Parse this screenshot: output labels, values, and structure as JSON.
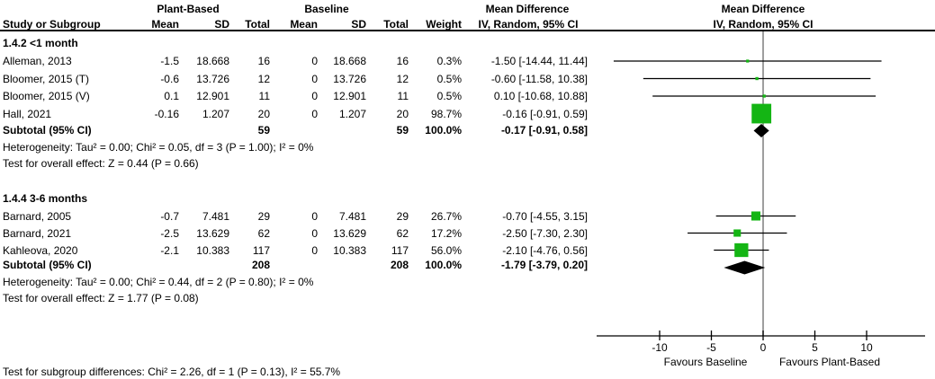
{
  "colors": {
    "marker_green": "#14b514",
    "diamond_black": "#000000",
    "ci_line": "#000000",
    "zero_line_gray": "#7f7f7f",
    "axis_black": "#000000",
    "text": "#000000"
  },
  "headers": {
    "group_plant": "Plant-Based",
    "group_baseline": "Baseline",
    "study": "Study or Subgroup",
    "mean1": "Mean",
    "sd1": "SD",
    "total1": "Total",
    "mean2": "Mean",
    "sd2": "SD",
    "total2": "Total",
    "weight": "Weight",
    "md_line1": "Mean Difference",
    "md_line2": "IV, Random, 95% CI",
    "plot_line1": "Mean Difference",
    "plot_line2": "IV, Random, 95% CI"
  },
  "chart_data": {
    "type": "forest",
    "effect_measure": "Mean Difference",
    "model": "IV, Random, 95% CI",
    "axis": {
      "ticks": [
        -10,
        -5,
        0,
        5,
        10
      ],
      "tick_labels": [
        "-10",
        "-5",
        "0",
        "5",
        "10"
      ],
      "favours_left": "Favours Baseline",
      "favours_right": "Favours Plant-Based"
    },
    "subgroups": [
      {
        "label": "1.4.2 <1 month",
        "studies": [
          {
            "study": "Alleman, 2013",
            "mean1": "-1.5",
            "sd1": "18.668",
            "n1": "16",
            "mean2": "0",
            "sd2": "18.668",
            "n2": "16",
            "weight": "0.3%",
            "weight_pct": 0.3,
            "md": -1.5,
            "ci_lo": -14.44,
            "ci_hi": 11.44,
            "ci_text": "-1.50 [-14.44, 11.44]"
          },
          {
            "study": "Bloomer, 2015 (T)",
            "mean1": "-0.6",
            "sd1": "13.726",
            "n1": "12",
            "mean2": "0",
            "sd2": "13.726",
            "n2": "12",
            "weight": "0.5%",
            "weight_pct": 0.5,
            "md": -0.6,
            "ci_lo": -11.58,
            "ci_hi": 10.38,
            "ci_text": "-0.60 [-11.58, 10.38]"
          },
          {
            "study": "Bloomer, 2015 (V)",
            "mean1": "0.1",
            "sd1": "12.901",
            "n1": "11",
            "mean2": "0",
            "sd2": "12.901",
            "n2": "11",
            "weight": "0.5%",
            "weight_pct": 0.5,
            "md": 0.1,
            "ci_lo": -10.68,
            "ci_hi": 10.88,
            "ci_text": "0.10 [-10.68, 10.88]"
          },
          {
            "study": "Hall, 2021",
            "mean1": "-0.16",
            "sd1": "1.207",
            "n1": "20",
            "mean2": "0",
            "sd2": "1.207",
            "n2": "20",
            "weight": "98.7%",
            "weight_pct": 98.7,
            "md": -0.16,
            "ci_lo": -0.91,
            "ci_hi": 0.59,
            "ci_text": "-0.16 [-0.91, 0.59]"
          }
        ],
        "subtotal": {
          "label": "Subtotal (95% CI)",
          "n1": "59",
          "n2": "59",
          "weight": "100.0%",
          "md": -0.17,
          "ci_lo": -0.91,
          "ci_hi": 0.58,
          "ci_text": "-0.17 [-0.91, 0.58]"
        },
        "heterogeneity": "Heterogeneity: Tau² = 0.00; Chi² = 0.05, df = 3 (P = 1.00); I² = 0%",
        "overall_effect": "Test for overall effect: Z = 0.44 (P = 0.66)"
      },
      {
        "label": "1.4.4 3-6 months",
        "studies": [
          {
            "study": "Barnard, 2005",
            "mean1": "-0.7",
            "sd1": "7.481",
            "n1": "29",
            "mean2": "0",
            "sd2": "7.481",
            "n2": "29",
            "weight": "26.7%",
            "weight_pct": 26.7,
            "md": -0.7,
            "ci_lo": -4.55,
            "ci_hi": 3.15,
            "ci_text": "-0.70 [-4.55, 3.15]"
          },
          {
            "study": "Barnard, 2021",
            "mean1": "-2.5",
            "sd1": "13.629",
            "n1": "62",
            "mean2": "0",
            "sd2": "13.629",
            "n2": "62",
            "weight": "17.2%",
            "weight_pct": 17.2,
            "md": -2.5,
            "ci_lo": -7.3,
            "ci_hi": 2.3,
            "ci_text": "-2.50 [-7.30, 2.30]"
          },
          {
            "study": "Kahleova, 2020",
            "mean1": "-2.1",
            "sd1": "10.383",
            "n1": "117",
            "mean2": "0",
            "sd2": "10.383",
            "n2": "117",
            "weight": "56.0%",
            "weight_pct": 56.0,
            "md": -2.1,
            "ci_lo": -4.76,
            "ci_hi": 0.56,
            "ci_text": "-2.10 [-4.76, 0.56]"
          }
        ],
        "subtotal": {
          "label": "Subtotal (95% CI)",
          "n1": "208",
          "n2": "208",
          "weight": "100.0%",
          "md": -1.79,
          "ci_lo": -3.79,
          "ci_hi": 0.2,
          "ci_text": "-1.79 [-3.79, 0.20]"
        },
        "heterogeneity": "Heterogeneity: Tau² = 0.00; Chi² = 0.44, df = 2 (P = 0.80); I² = 0%",
        "overall_effect": "Test for overall effect: Z = 1.77 (P = 0.08)"
      }
    ],
    "footer": "Test for subgroup differences: Chi² = 2.26, df = 1 (P = 0.13), I² = 55.7%"
  }
}
